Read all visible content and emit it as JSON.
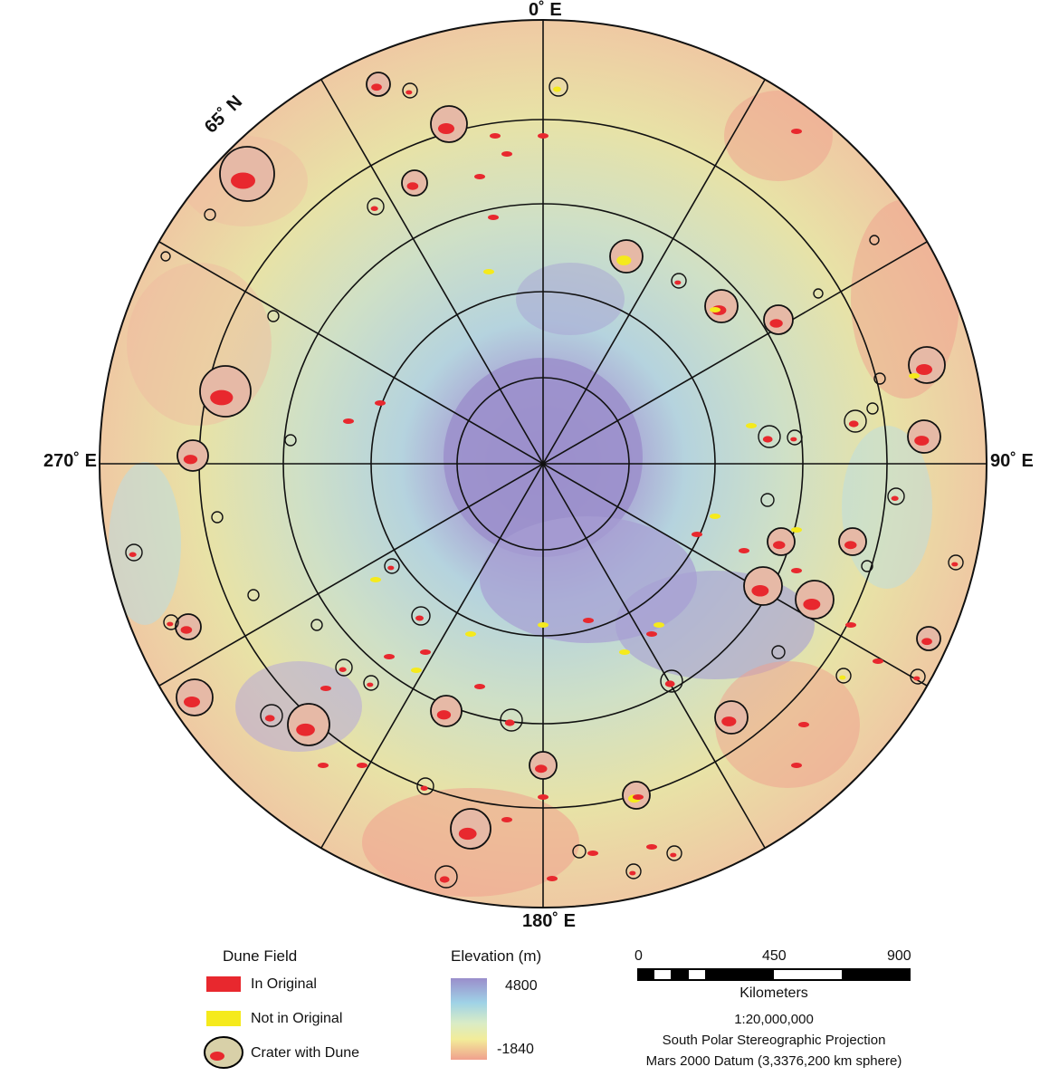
{
  "map": {
    "labels": {
      "top": "0˚ E",
      "left": "270˚ E",
      "right": "90˚ E",
      "bottom": "180˚ E",
      "latitude": "65˚ N"
    },
    "colors": {
      "dune_original": "#e8282e",
      "dune_not_original": "#f5ea1c",
      "elev_high": "#9a8ecb",
      "elev_low": "#f0a08e"
    }
  },
  "legend": {
    "dune": {
      "title": "Dune Field",
      "in_original": "In Original",
      "not_in_original": "Not in Original",
      "crater_with_dune": "Crater with Dune"
    },
    "elevation": {
      "title": "Elevation (m)",
      "max": "4800",
      "min": "-1840"
    },
    "scale": {
      "tick_0": "0",
      "tick_450": "450",
      "tick_900": "900",
      "units": "Kilometers",
      "ratio": "1:20,000,000",
      "projection": "South Polar Stereographic Projection",
      "datum": "Mars 2000 Datum (3,3376,200 km sphere)"
    }
  }
}
